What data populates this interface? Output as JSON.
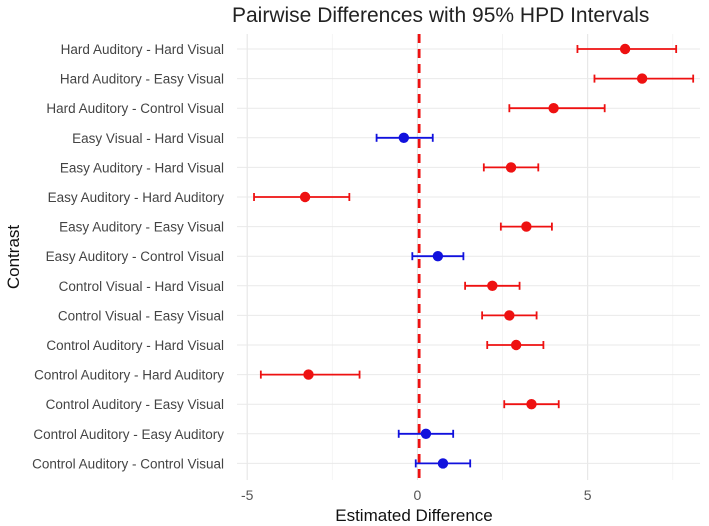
{
  "chart_data": {
    "type": "errorbar",
    "title": "Pairwise Differences with 95% HPD Intervals",
    "xlabel": "Estimated Difference",
    "ylabel": "Contrast",
    "xlim": [
      -5.3,
      8.3
    ],
    "xticks": [
      -5,
      0,
      5
    ],
    "reference_line": 0.05,
    "grid": true,
    "colors": {
      "excludes_zero": "#ee1111",
      "includes_zero": "#1111dd",
      "reference": "#ee1111"
    },
    "contrasts": [
      {
        "label": "Hard Auditory - Hard Visual",
        "estimate": 6.1,
        "lower": 4.7,
        "upper": 7.6,
        "significant": true
      },
      {
        "label": "Hard Auditory - Easy Visual",
        "estimate": 6.6,
        "lower": 5.2,
        "upper": 8.1,
        "significant": true
      },
      {
        "label": "Hard Auditory - Control Visual",
        "estimate": 4.0,
        "lower": 2.7,
        "upper": 5.5,
        "significant": true
      },
      {
        "label": "Easy Visual - Hard Visual",
        "estimate": -0.4,
        "lower": -1.2,
        "upper": 0.45,
        "significant": false
      },
      {
        "label": "Easy Auditory - Hard Visual",
        "estimate": 2.75,
        "lower": 1.95,
        "upper": 3.55,
        "significant": true
      },
      {
        "label": "Easy Auditory - Hard Auditory",
        "estimate": -3.3,
        "lower": -4.8,
        "upper": -2.0,
        "significant": true
      },
      {
        "label": "Easy Auditory - Easy Visual",
        "estimate": 3.2,
        "lower": 2.45,
        "upper": 3.95,
        "significant": true
      },
      {
        "label": "Easy Auditory - Control Visual",
        "estimate": 0.6,
        "lower": -0.15,
        "upper": 1.35,
        "significant": false
      },
      {
        "label": "Control Visual - Hard Visual",
        "estimate": 2.2,
        "lower": 1.4,
        "upper": 3.0,
        "significant": true
      },
      {
        "label": "Control Visual - Easy Visual",
        "estimate": 2.7,
        "lower": 1.9,
        "upper": 3.5,
        "significant": true
      },
      {
        "label": "Control Auditory - Hard Visual",
        "estimate": 2.9,
        "lower": 2.05,
        "upper": 3.7,
        "significant": true
      },
      {
        "label": "Control Auditory - Hard Auditory",
        "estimate": -3.2,
        "lower": -4.6,
        "upper": -1.7,
        "significant": true
      },
      {
        "label": "Control Auditory - Easy Visual",
        "estimate": 3.35,
        "lower": 2.55,
        "upper": 4.15,
        "significant": true
      },
      {
        "label": "Control Auditory - Easy Auditory",
        "estimate": 0.25,
        "lower": -0.55,
        "upper": 1.05,
        "significant": false
      },
      {
        "label": "Control Auditory - Control Visual",
        "estimate": 0.75,
        "lower": -0.05,
        "upper": 1.55,
        "significant": false
      }
    ]
  }
}
